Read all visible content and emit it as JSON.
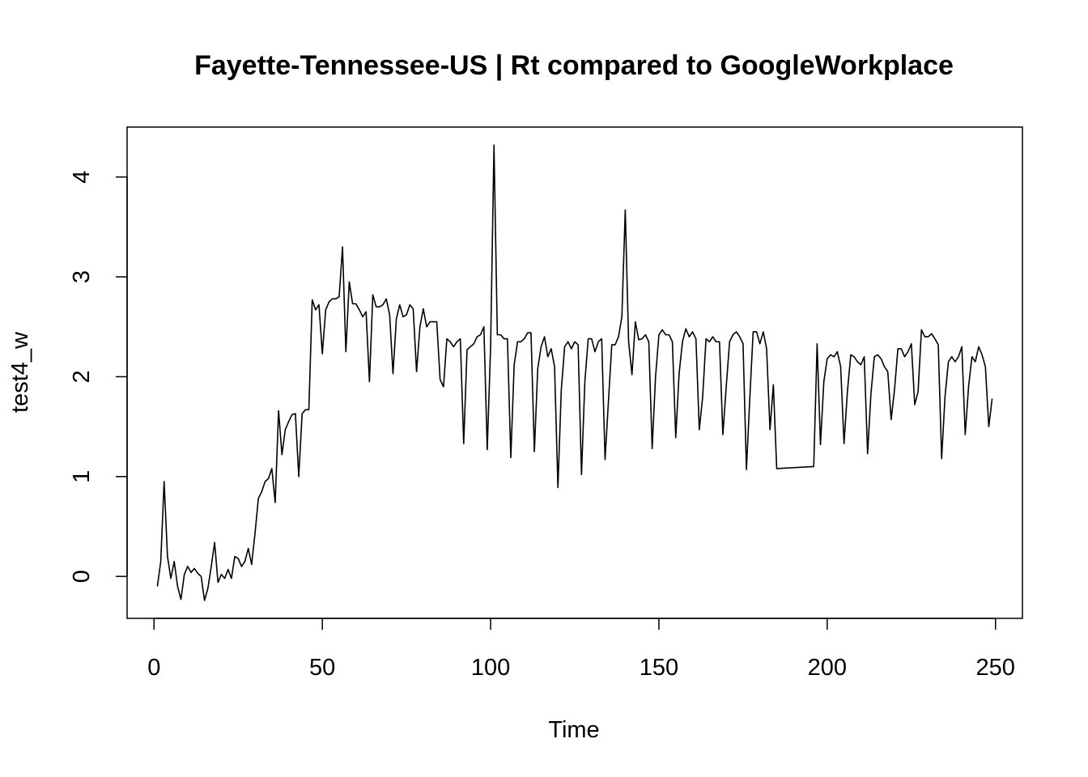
{
  "chart_data": {
    "type": "line",
    "title": "Fayette-Tennessee-US | Rt compared to GoogleWorkplace",
    "xlabel": "Time",
    "ylabel": "test4_w",
    "xlim": [
      -8,
      258
    ],
    "ylim": [
      -0.42,
      4.5
    ],
    "x_ticks": [
      0,
      50,
      100,
      150,
      200,
      250
    ],
    "y_ticks": [
      0,
      1,
      2,
      3,
      4
    ],
    "x_tick_labels": [
      "0",
      "50",
      "100",
      "150",
      "200",
      "250"
    ],
    "y_tick_labels": [
      "0",
      "1",
      "2",
      "3",
      "4"
    ],
    "grid": false,
    "legend": "none",
    "line_color": "#000000",
    "series": [
      {
        "x_start": 1,
        "values": [
          -0.1,
          0.15,
          0.95,
          0.2,
          -0.02,
          0.15,
          -0.1,
          -0.23,
          0.02,
          0.1,
          0.04,
          0.08,
          0.03,
          0.0,
          -0.24,
          -0.12,
          0.1,
          0.34,
          -0.06,
          0.02,
          -0.02,
          0.07,
          -0.02,
          0.2,
          0.18,
          0.1,
          0.15,
          0.28,
          0.12,
          0.43,
          0.78,
          0.85,
          0.95,
          0.98,
          1.08,
          0.74,
          1.66,
          1.22,
          1.47,
          1.55,
          1.62,
          1.63,
          1.0,
          1.63,
          1.67,
          1.67,
          2.77,
          2.67,
          2.72,
          2.23,
          2.67,
          2.75,
          2.78,
          2.78,
          2.8,
          3.3,
          2.25,
          2.95,
          2.73,
          2.73,
          2.67,
          2.6,
          2.65,
          1.95,
          2.82,
          2.7,
          2.7,
          2.72,
          2.78,
          2.62,
          2.03,
          2.58,
          2.72,
          2.6,
          2.62,
          2.72,
          2.68,
          2.05,
          2.5,
          2.68,
          2.5,
          2.55,
          2.55,
          2.55,
          1.97,
          1.9,
          2.38,
          2.35,
          2.3,
          2.35,
          2.38,
          1.33,
          2.27,
          2.3,
          2.33,
          2.4,
          2.42,
          2.5,
          1.27,
          2.3,
          4.32,
          2.42,
          2.42,
          2.38,
          2.38,
          1.19,
          2.12,
          2.35,
          2.35,
          2.38,
          2.44,
          2.44,
          1.25,
          2.08,
          2.3,
          2.4,
          2.2,
          2.28,
          2.1,
          0.89,
          1.87,
          2.3,
          2.35,
          2.28,
          2.35,
          2.32,
          1.02,
          1.95,
          2.38,
          2.38,
          2.25,
          2.35,
          2.38,
          1.17,
          1.75,
          2.32,
          2.32,
          2.4,
          2.6,
          3.67,
          2.35,
          2.02,
          2.55,
          2.37,
          2.38,
          2.42,
          2.35,
          1.28,
          2.0,
          2.42,
          2.47,
          2.42,
          2.42,
          2.35,
          1.39,
          2.03,
          2.35,
          2.48,
          2.4,
          2.45,
          2.38,
          1.47,
          1.8,
          2.38,
          2.35,
          2.4,
          2.35,
          2.35,
          1.42,
          1.9,
          2.35,
          2.42,
          2.45,
          2.4,
          2.33,
          1.07,
          1.78,
          2.45,
          2.45,
          2.33,
          2.45,
          2.28,
          1.47,
          1.92,
          1.08
        ]
      },
      {
        "x_start": 197,
        "values": [
          2.33,
          1.32,
          1.95,
          2.18,
          2.22,
          2.2,
          2.25,
          2.1,
          1.33,
          1.85,
          2.22,
          2.2,
          2.15,
          2.12,
          2.2,
          1.23,
          1.83,
          2.2,
          2.22,
          2.18,
          2.1,
          2.05,
          1.57,
          1.87,
          2.28,
          2.28,
          2.2,
          2.25,
          2.33,
          1.72,
          1.85,
          2.47,
          2.4,
          2.4,
          2.43,
          2.38,
          2.32,
          1.18,
          1.8,
          2.15,
          2.2,
          2.15,
          2.2,
          2.3,
          1.42,
          1.9,
          2.2,
          2.15,
          2.3,
          2.22,
          2.1,
          1.5,
          1.78
        ]
      }
    ],
    "flat_segment": {
      "x": [
        185,
        196
      ],
      "y": [
        1.08,
        1.1
      ]
    }
  }
}
